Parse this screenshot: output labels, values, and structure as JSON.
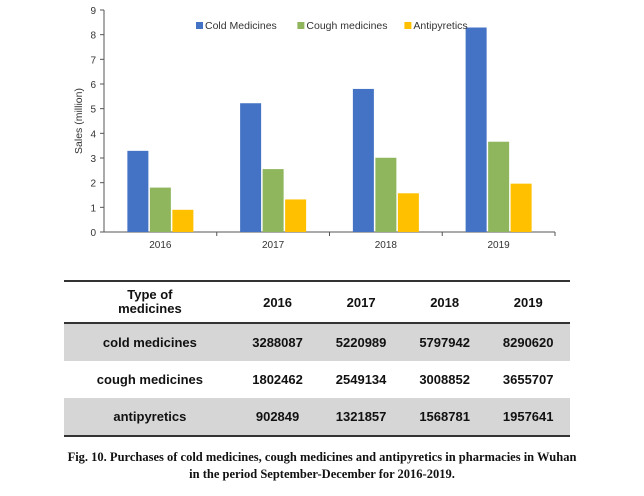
{
  "chart_data": {
    "type": "bar",
    "categories": [
      "2016",
      "2017",
      "2018",
      "2019"
    ],
    "series": [
      {
        "name": "Cold Medicines",
        "values": [
          3.29,
          5.22,
          5.8,
          8.29
        ],
        "color": "#4472c4"
      },
      {
        "name": "Cough medicines",
        "values": [
          1.8,
          2.55,
          3.01,
          3.66
        ],
        "color": "#8fb65d"
      },
      {
        "name": "Antipyretics",
        "values": [
          0.9,
          1.32,
          1.57,
          1.96
        ],
        "color": "#ffc000"
      }
    ],
    "ylabel": "Sales (million)",
    "xlabel": "",
    "ylim": [
      0,
      9
    ],
    "yticks": [
      "0",
      "1",
      "2",
      "3",
      "4",
      "5",
      "6",
      "7",
      "8",
      "9"
    ],
    "legend": "top",
    "grid": false
  },
  "table": {
    "header_line1": "Type of",
    "header_line2": "medicines",
    "years": [
      "2016",
      "2017",
      "2018",
      "2019"
    ],
    "rows": [
      {
        "type": "cold medicines",
        "values": [
          "3288087",
          "5220989",
          "5797942",
          "8290620"
        ]
      },
      {
        "type": "cough medicines",
        "values": [
          "1802462",
          "2549134",
          "3008852",
          "3655707"
        ]
      },
      {
        "type": "antipyretics",
        "values": [
          "902849",
          "1321857",
          "1568781",
          "1957641"
        ]
      }
    ]
  },
  "caption": {
    "line1": "Fig. 10. Purchases of cold medicines, cough medicines and antipyretics in pharmacies in Wuhan",
    "line2": "in the period September-December for 2016-2019."
  }
}
